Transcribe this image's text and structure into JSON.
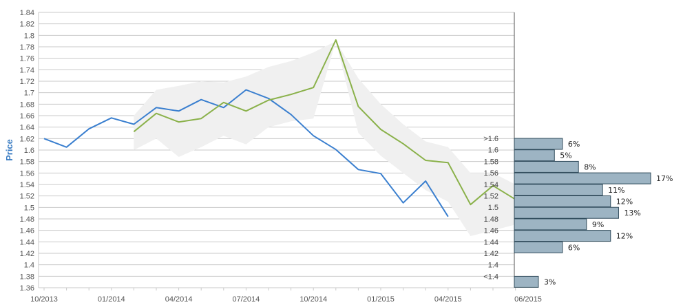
{
  "chart_data": {
    "type": "line",
    "ylabel": "Price",
    "ylim": [
      1.36,
      1.84
    ],
    "y_ticks": [
      "1.84",
      "1.82",
      "1.8",
      "1.78",
      "1.76",
      "1.74",
      "1.72",
      "1.7",
      "1.68",
      "1.66",
      "1.64",
      "1.62",
      "1.6",
      "1.58",
      "1.56",
      "1.54",
      "1.52",
      "1.5",
      "1.48",
      "1.46",
      "1.44",
      "1.42",
      "1.4",
      "1.38",
      "1.36"
    ],
    "x_ticks": [
      "10/2013",
      "01/2014",
      "04/2014",
      "07/2014",
      "10/2014",
      "01/2015",
      "04/2015",
      "06/2015"
    ],
    "grid": true,
    "series": [
      {
        "color": "#3a7fcf",
        "x": [
          "2013-10",
          "2013-11",
          "2013-12",
          "2014-01",
          "2014-02",
          "2014-03",
          "2014-04",
          "2014-05",
          "2014-06",
          "2014-07",
          "2014-08",
          "2014-09",
          "2014-10",
          "2014-11",
          "2014-12",
          "2015-01",
          "2015-02",
          "2015-03",
          "2015-04"
        ],
        "values": [
          1.62,
          1.605,
          1.637,
          1.656,
          1.645,
          1.674,
          1.668,
          1.688,
          1.674,
          1.705,
          1.69,
          1.662,
          1.625,
          1.601,
          1.566,
          1.559,
          1.508,
          1.546,
          1.484
        ]
      },
      {
        "color": "#8ab14a",
        "x": [
          "2014-02",
          "2014-03",
          "2014-04",
          "2014-05",
          "2014-06",
          "2014-07",
          "2014-08",
          "2014-09",
          "2014-10",
          "2014-11",
          "2014-12",
          "2015-01",
          "2015-02",
          "2015-03",
          "2015-04",
          "2015-05",
          "2015-06",
          "2015-07"
        ],
        "values": [
          1.632,
          1.664,
          1.649,
          1.655,
          1.683,
          1.668,
          1.687,
          1.697,
          1.709,
          1.792,
          1.676,
          1.636,
          1.611,
          1.582,
          1.578,
          1.505,
          1.538,
          1.514
        ]
      }
    ],
    "band": {
      "color": "#f0f0f0",
      "x": [
        "2014-02",
        "2014-03",
        "2014-04",
        "2014-05",
        "2014-06",
        "2014-07",
        "2014-08",
        "2014-09",
        "2014-10",
        "2014-11",
        "2014-12",
        "2015-01",
        "2015-02",
        "2015-03",
        "2015-04",
        "2015-05",
        "2015-06",
        "2015-07"
      ],
      "upper": [
        1.66,
        1.705,
        1.712,
        1.72,
        1.718,
        1.728,
        1.745,
        1.755,
        1.77,
        1.79,
        1.725,
        1.68,
        1.645,
        1.615,
        1.605,
        1.56,
        1.56,
        1.54
      ],
      "lower": [
        1.6,
        1.62,
        1.588,
        1.605,
        1.625,
        1.61,
        1.64,
        1.65,
        1.655,
        1.79,
        1.63,
        1.59,
        1.56,
        1.53,
        1.51,
        1.45,
        1.46,
        1.47
      ]
    },
    "distribution": {
      "type": "bar",
      "color": "#9db4c3",
      "categories": [
        ">1.6",
        "1.6",
        "1.58",
        "1.56",
        "1.54",
        "1.52",
        "1.5",
        "1.48",
        "1.46",
        "1.44",
        "1.42",
        "1.4",
        "<1.4"
      ],
      "values": [
        6,
        5,
        8,
        17,
        11,
        12,
        13,
        9,
        12,
        6,
        0,
        0,
        3
      ],
      "labels": [
        "6%",
        "5%",
        "8%",
        "17%",
        "11%",
        "12%",
        "13%",
        "9%",
        "12%",
        "6%",
        "",
        "",
        "3%"
      ]
    }
  }
}
